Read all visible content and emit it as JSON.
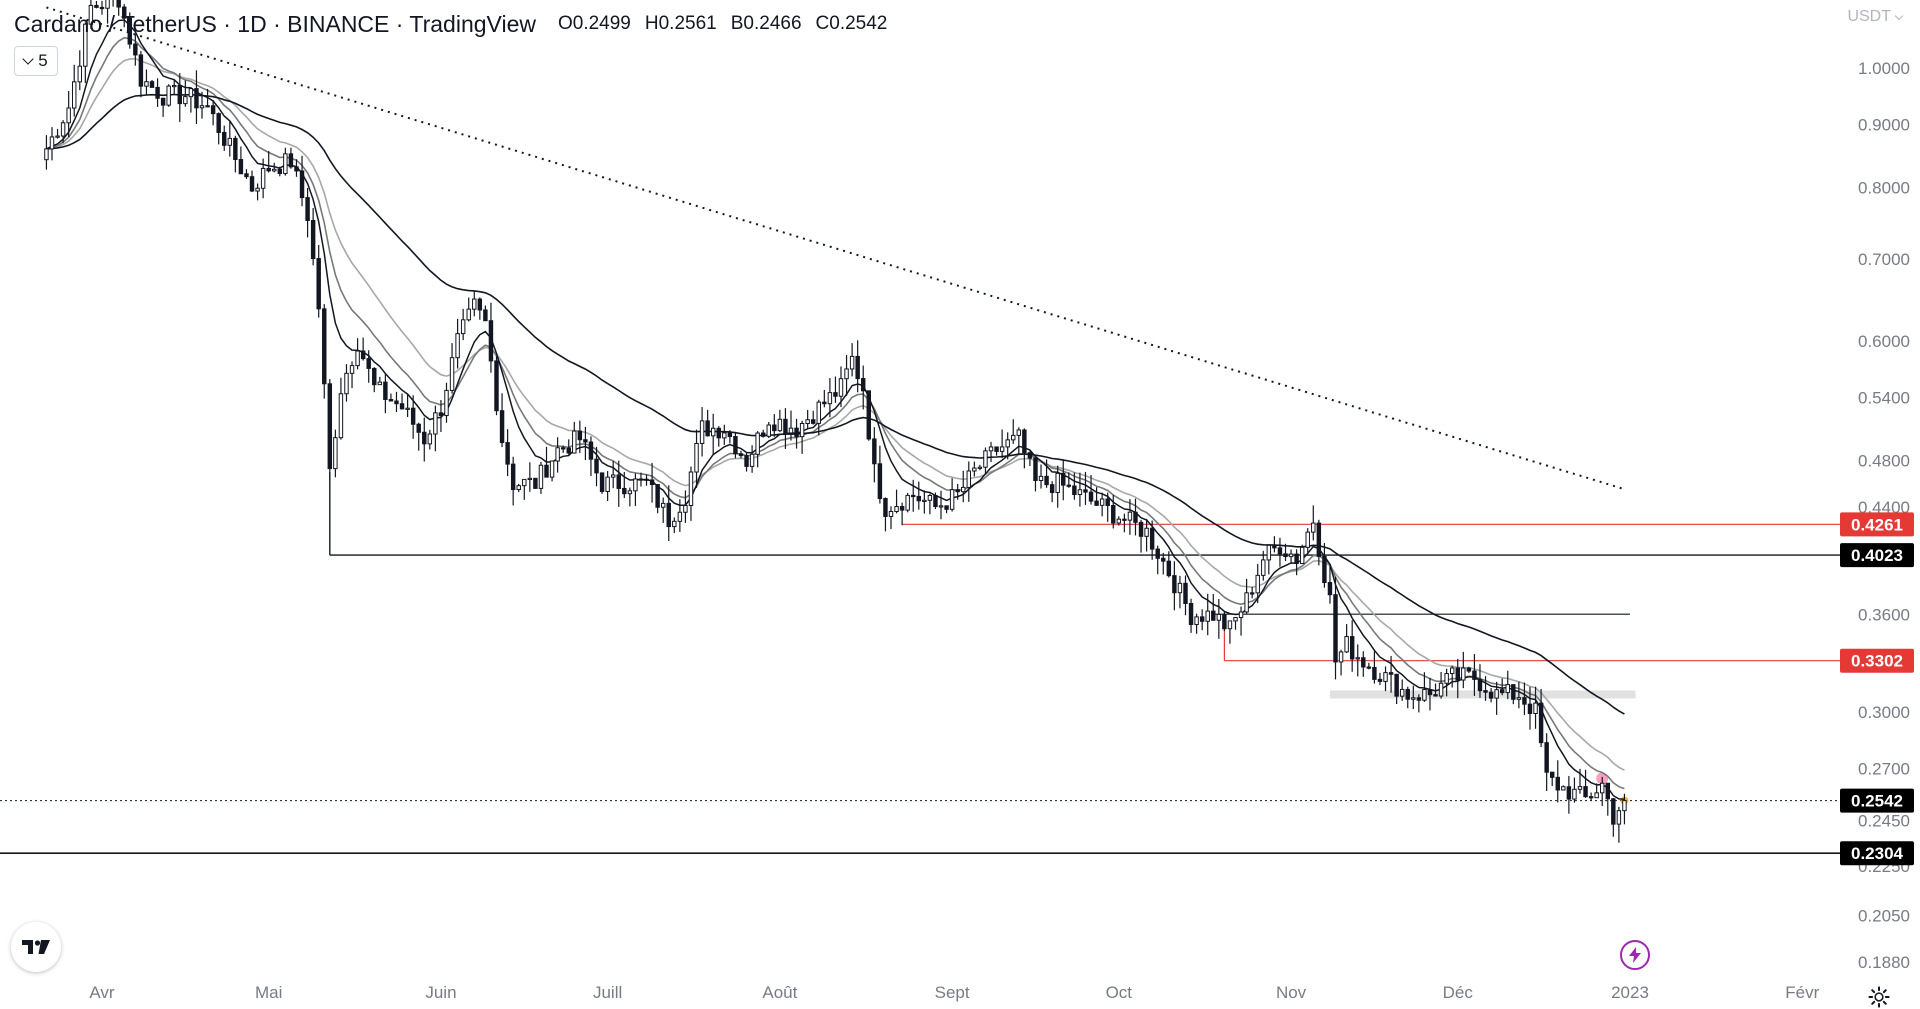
{
  "header": {
    "symbol": "Cardano / TetherUS · 1D · BINANCE · TradingView",
    "open": "O0.2499",
    "high": "H0.2561",
    "low": "B0.2466",
    "close": "C0.2542"
  },
  "indicators_toggle": {
    "count": "5"
  },
  "currency": "USDT",
  "colors": {
    "candle": "#131722",
    "red_line": "#e53935",
    "badge_red": "#e53935",
    "badge_black": "#000000",
    "ema_light": "#a8a8a8",
    "ema_mid": "#787878",
    "highlight_marker": "#f06292",
    "last_marker": "#ff9800",
    "bolt": "#9c27b0"
  },
  "icons": {
    "logo": "tradingview-logo-icon",
    "bolt": "lightning-bolt-icon",
    "settings": "gear-icon"
  },
  "chart_data": {
    "type": "candlestick",
    "scale": "log",
    "title": "Cardano / TetherUS · 1D · BINANCE · TradingView",
    "ylim": [
      0.18,
      1.05
    ],
    "y_ticks": [
      "1.0000",
      "0.9000",
      "0.8000",
      "0.7000",
      "0.6000",
      "0.5400",
      "0.4800",
      "0.4400",
      "0.3600",
      "0.3000",
      "0.2700",
      "0.2450",
      "0.2250",
      "0.2050",
      "0.1880"
    ],
    "x_ticks": [
      {
        "label": "Avr",
        "date": "2022-04-01"
      },
      {
        "label": "Mai",
        "date": "2022-05-01"
      },
      {
        "label": "Juin",
        "date": "2022-06-01"
      },
      {
        "label": "Juill",
        "date": "2022-07-01"
      },
      {
        "label": "Août",
        "date": "2022-08-01"
      },
      {
        "label": "Sept",
        "date": "2022-09-01"
      },
      {
        "label": "Oct",
        "date": "2022-10-01"
      },
      {
        "label": "Nov",
        "date": "2022-11-01"
      },
      {
        "label": "Déc",
        "date": "2022-12-01"
      },
      {
        "label": "2023",
        "date": "2023-01-01"
      },
      {
        "label": "Févr",
        "date": "2023-02-01"
      }
    ],
    "price_badges": [
      {
        "label": "0.4261",
        "value": 0.4261,
        "style": "red"
      },
      {
        "label": "0.4023",
        "value": 0.4023,
        "style": "black"
      },
      {
        "label": "0.3302",
        "value": 0.3302,
        "style": "red"
      },
      {
        "label": "0.2542",
        "value": 0.2542,
        "style": "black"
      },
      {
        "label": "0.2304",
        "value": 0.2304,
        "style": "black"
      }
    ],
    "close_path": [
      {
        "date": "2022-03-22",
        "close": 0.86
      },
      {
        "date": "2022-03-26",
        "close": 0.93
      },
      {
        "date": "2022-03-30",
        "close": 1.12
      },
      {
        "date": "2022-04-04",
        "close": 1.14
      },
      {
        "date": "2022-04-08",
        "close": 0.98
      },
      {
        "date": "2022-04-12",
        "close": 0.95
      },
      {
        "date": "2022-04-16",
        "close": 0.95
      },
      {
        "date": "2022-04-20",
        "close": 0.93
      },
      {
        "date": "2022-04-24",
        "close": 0.86
      },
      {
        "date": "2022-04-28",
        "close": 0.8
      },
      {
        "date": "2022-05-01",
        "close": 0.83
      },
      {
        "date": "2022-05-05",
        "close": 0.84
      },
      {
        "date": "2022-05-08",
        "close": 0.76
      },
      {
        "date": "2022-05-10",
        "close": 0.64
      },
      {
        "date": "2022-05-12",
        "close": 0.47
      },
      {
        "date": "2022-05-14",
        "close": 0.55
      },
      {
        "date": "2022-05-17",
        "close": 0.6
      },
      {
        "date": "2022-05-20",
        "close": 0.55
      },
      {
        "date": "2022-05-25",
        "close": 0.53
      },
      {
        "date": "2022-05-29",
        "close": 0.5
      },
      {
        "date": "2022-06-01",
        "close": 0.53
      },
      {
        "date": "2022-06-04",
        "close": 0.6
      },
      {
        "date": "2022-06-07",
        "close": 0.64
      },
      {
        "date": "2022-06-09",
        "close": 0.62
      },
      {
        "date": "2022-06-12",
        "close": 0.5
      },
      {
        "date": "2022-06-14",
        "close": 0.46
      },
      {
        "date": "2022-06-18",
        "close": 0.46
      },
      {
        "date": "2022-06-22",
        "close": 0.49
      },
      {
        "date": "2022-06-26",
        "close": 0.5
      },
      {
        "date": "2022-06-30",
        "close": 0.46
      },
      {
        "date": "2022-07-04",
        "close": 0.46
      },
      {
        "date": "2022-07-08",
        "close": 0.46
      },
      {
        "date": "2022-07-12",
        "close": 0.43
      },
      {
        "date": "2022-07-15",
        "close": 0.45
      },
      {
        "date": "2022-07-18",
        "close": 0.51
      },
      {
        "date": "2022-07-22",
        "close": 0.51
      },
      {
        "date": "2022-07-26",
        "close": 0.48
      },
      {
        "date": "2022-07-30",
        "close": 0.52
      },
      {
        "date": "2022-08-04",
        "close": 0.51
      },
      {
        "date": "2022-08-08",
        "close": 0.53
      },
      {
        "date": "2022-08-12",
        "close": 0.55
      },
      {
        "date": "2022-08-14",
        "close": 0.58
      },
      {
        "date": "2022-08-16",
        "close": 0.55
      },
      {
        "date": "2022-08-18",
        "close": 0.47
      },
      {
        "date": "2022-08-20",
        "close": 0.44
      },
      {
        "date": "2022-08-25",
        "close": 0.45
      },
      {
        "date": "2022-08-29",
        "close": 0.44
      },
      {
        "date": "2022-09-02",
        "close": 0.45
      },
      {
        "date": "2022-09-05",
        "close": 0.47
      },
      {
        "date": "2022-09-09",
        "close": 0.49
      },
      {
        "date": "2022-09-13",
        "close": 0.5
      },
      {
        "date": "2022-09-16",
        "close": 0.46
      },
      {
        "date": "2022-09-20",
        "close": 0.46
      },
      {
        "date": "2022-09-24",
        "close": 0.45
      },
      {
        "date": "2022-09-28",
        "close": 0.44
      },
      {
        "date": "2022-10-02",
        "close": 0.43
      },
      {
        "date": "2022-10-06",
        "close": 0.42
      },
      {
        "date": "2022-10-10",
        "close": 0.39
      },
      {
        "date": "2022-10-14",
        "close": 0.36
      },
      {
        "date": "2022-10-18",
        "close": 0.36
      },
      {
        "date": "2022-10-21",
        "close": 0.35
      },
      {
        "date": "2022-10-24",
        "close": 0.37
      },
      {
        "date": "2022-10-27",
        "close": 0.4
      },
      {
        "date": "2022-10-30",
        "close": 0.41
      },
      {
        "date": "2022-11-02",
        "close": 0.4
      },
      {
        "date": "2022-11-05",
        "close": 0.43
      },
      {
        "date": "2022-11-08",
        "close": 0.37
      },
      {
        "date": "2022-11-09",
        "close": 0.33
      },
      {
        "date": "2022-11-11",
        "close": 0.34
      },
      {
        "date": "2022-11-14",
        "close": 0.33
      },
      {
        "date": "2022-11-18",
        "close": 0.32
      },
      {
        "date": "2022-11-22",
        "close": 0.31
      },
      {
        "date": "2022-11-26",
        "close": 0.31
      },
      {
        "date": "2022-11-30",
        "close": 0.32
      },
      {
        "date": "2022-12-04",
        "close": 0.32
      },
      {
        "date": "2022-12-08",
        "close": 0.31
      },
      {
        "date": "2022-12-12",
        "close": 0.31
      },
      {
        "date": "2022-12-15",
        "close": 0.3
      },
      {
        "date": "2022-12-17",
        "close": 0.265
      },
      {
        "date": "2022-12-20",
        "close": 0.26
      },
      {
        "date": "2022-12-24",
        "close": 0.255
      },
      {
        "date": "2022-12-27",
        "close": 0.262
      },
      {
        "date": "2022-12-29",
        "close": 0.247
      },
      {
        "date": "2022-12-31",
        "close": 0.2542
      }
    ]
  }
}
